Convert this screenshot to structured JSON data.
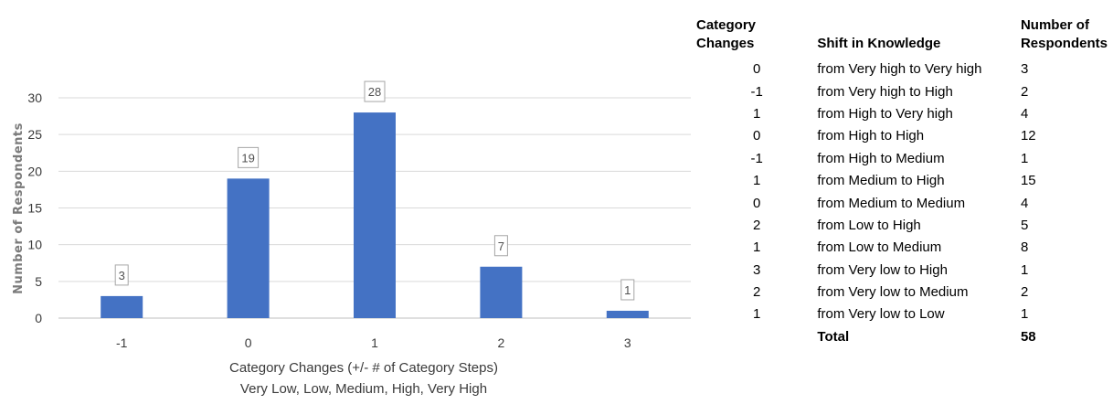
{
  "chart_data": {
    "type": "bar",
    "categories": [
      "-1",
      "0",
      "1",
      "2",
      "3"
    ],
    "values": [
      3,
      19,
      28,
      7,
      1
    ],
    "xlabel": [
      "Category Changes (+/- # of Category Steps)",
      "Very Low, Low, Medium, High, Very High"
    ],
    "ylabel": "Number of Respondents",
    "ylim": [
      0,
      30
    ],
    "yticks": [
      0,
      5,
      10,
      15,
      20,
      25,
      30
    ],
    "grid": true,
    "bar_color": "#4472C4",
    "data_labels": true
  },
  "table": {
    "headers": {
      "col1": "Category Changes",
      "col2": "Shift in Knowledge",
      "col3_line1": "Number of",
      "col3_line2": "Respondents"
    },
    "rows": [
      {
        "change": "0",
        "shift": "from Very high to Very high",
        "count": "3"
      },
      {
        "change": "-1",
        "shift": "from Very high to High",
        "count": "2"
      },
      {
        "change": "1",
        "shift": "from High to Very high",
        "count": "4"
      },
      {
        "change": "0",
        "shift": "from High to High",
        "count": "12"
      },
      {
        "change": "-1",
        "shift": "from High to Medium",
        "count": "1"
      },
      {
        "change": "1",
        "shift": "from Medium to High",
        "count": "15"
      },
      {
        "change": "0",
        "shift": "from Medium to Medium",
        "count": "4"
      },
      {
        "change": "2",
        "shift": "from Low to High",
        "count": "5"
      },
      {
        "change": "1",
        "shift": "from Low to Medium",
        "count": "8"
      },
      {
        "change": "3",
        "shift": "from Very low to High",
        "count": "1"
      },
      {
        "change": "2",
        "shift": "from Very low to Medium",
        "count": "2"
      },
      {
        "change": "1",
        "shift": "from Very low to Low",
        "count": "1"
      }
    ],
    "total_label": "Total",
    "total_value": "58"
  }
}
